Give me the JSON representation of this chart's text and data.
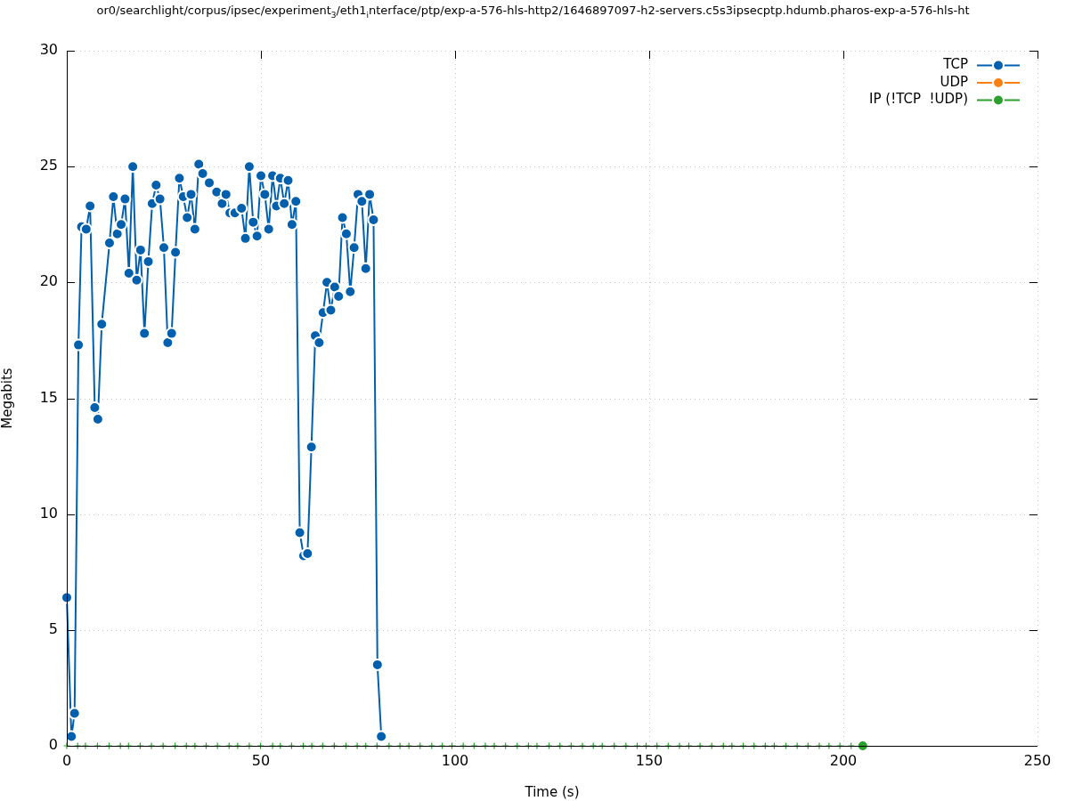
{
  "chart_data": {
    "type": "line",
    "title": "or0/searchlight/corpus/ipsec/experiment$_{3}$/eth1$_{i}$nterface/ptp/exp-a-576-hls-http2/1646897097-h2-servers.c5s3ipsecptp.hdumb.pharos-exp-a-576-hls-ht",
    "xlabel": "Time (s)",
    "ylabel": "Megabits",
    "xlim": [
      0,
      250
    ],
    "xticks": [
      0,
      50,
      100,
      150,
      200,
      250
    ],
    "ylim": [
      0,
      30
    ],
    "yticks": [
      0,
      5,
      10,
      15,
      20,
      25,
      30
    ],
    "grid": true,
    "legend": "top right",
    "marker": "circle",
    "series": [
      {
        "name": "TCP",
        "color": "#0060ad",
        "x": [
          0,
          1.2,
          2,
          3,
          3.8,
          5,
          6,
          7.2,
          8,
          9,
          11,
          12,
          13,
          14,
          15,
          16,
          17,
          18,
          19,
          20,
          21,
          22,
          23,
          24,
          25,
          26,
          27,
          28,
          29,
          30,
          31,
          32,
          33,
          34,
          35,
          36.7,
          38.6,
          40,
          41,
          42,
          43.3,
          45,
          46,
          47,
          48,
          49,
          50,
          51,
          52,
          53,
          54,
          55,
          56,
          57,
          58,
          59,
          60,
          61,
          62,
          63,
          64,
          65,
          66,
          67,
          68,
          69,
          70,
          71,
          72,
          73,
          74,
          75,
          76,
          77,
          78,
          79,
          80,
          81
        ],
        "values": [
          6.4,
          0.4,
          1.4,
          17.3,
          22.4,
          22.3,
          23.3,
          14.6,
          14.1,
          18.2,
          21.7,
          23.7,
          22.1,
          22.5,
          23.6,
          20.4,
          25.0,
          20.1,
          21.4,
          17.8,
          20.9,
          23.4,
          24.2,
          23.6,
          21.5,
          17.4,
          17.8,
          21.3,
          24.5,
          23.7,
          22.8,
          23.8,
          22.3,
          25.1,
          24.7,
          24.3,
          23.9,
          23.4,
          23.8,
          23.0,
          23.0,
          23.2,
          21.9,
          25.0,
          22.6,
          22.0,
          24.6,
          23.8,
          22.3,
          24.6,
          23.3,
          24.5,
          23.4,
          24.4,
          22.5,
          23.5,
          9.2,
          8.2,
          8.3,
          12.9,
          17.7,
          17.4,
          18.7,
          20.0,
          18.8,
          19.8,
          19.4,
          22.8,
          22.1,
          19.6,
          21.5,
          23.8,
          23.5,
          20.6,
          23.8,
          22.7,
          3.5,
          0.4
        ]
      },
      {
        "name": "UDP",
        "color": "#ff7f0e"
      },
      {
        "name": "IP (!TCP  !UDP)",
        "color": "#2ca02c",
        "x": [
          205
        ],
        "values": [
          0
        ]
      },
      {
        "type": "scatter",
        "marker": "cross",
        "color": "#2ca02c",
        "x": [
          0,
          2.8,
          4.8,
          7.9,
          10.9,
          13.8,
          15.9,
          18.9,
          21.8,
          24.8,
          27.9,
          30.8,
          33,
          35.9,
          38.8,
          41.8,
          44,
          47,
          49.9,
          53,
          55,
          57.9,
          60.9,
          63.1,
          65.9,
          68.9,
          71.9,
          74.8,
          77,
          79.9,
          83,
          85.8,
          88.1,
          91,
          94,
          96.7,
          99.2,
          102.1,
          104.9,
          107.8,
          110.1,
          113,
          116,
          118.9,
          121.1,
          124.2,
          127,
          129.9,
          132.8,
          135.6,
          137.9,
          141,
          144,
          146.9,
          149.2,
          152,
          154.9,
          157.8,
          160.2,
          163.1,
          166.1,
          169.1,
          171.3,
          174.2,
          177,
          179.9,
          182.2,
          185.2,
          188.1,
          190.9,
          193.8,
          196.3,
          199.1,
          202
        ],
        "values": [
          0,
          0,
          0,
          0,
          0,
          0,
          0,
          0,
          0,
          0,
          0,
          0,
          0,
          0,
          0,
          0,
          0,
          0,
          0,
          0,
          0,
          0,
          0,
          0,
          0,
          0,
          0,
          0,
          0,
          0,
          0,
          0,
          0,
          0,
          0,
          0,
          0,
          0,
          0,
          0,
          0,
          0,
          0,
          0,
          0,
          0,
          0,
          0,
          0,
          0,
          0,
          0,
          0,
          0,
          0,
          0,
          0,
          0,
          0,
          0,
          0,
          0,
          0,
          0,
          0,
          0,
          0,
          0,
          0,
          0,
          0,
          0,
          0,
          0
        ]
      }
    ]
  }
}
